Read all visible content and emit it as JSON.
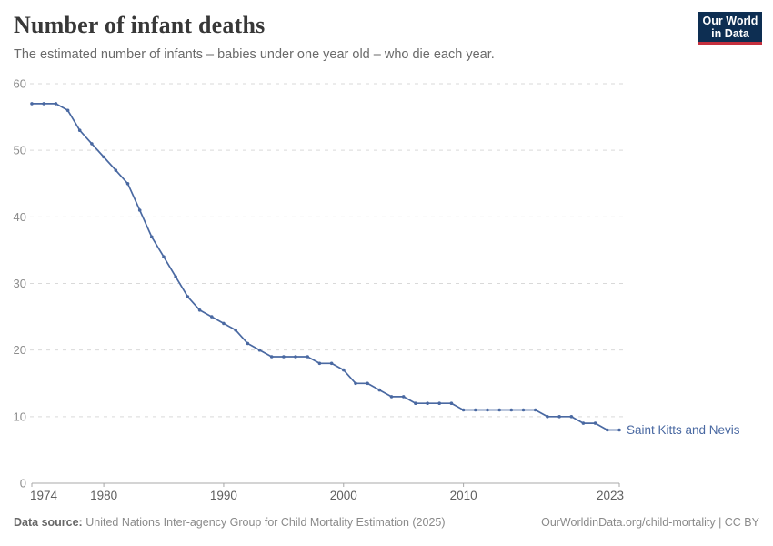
{
  "header": {
    "title": "Number of infant deaths",
    "subtitle": "The estimated number of infants – babies under one year old – who die each year.",
    "logo": {
      "line1": "Our World",
      "line2": "in Data",
      "bg_color": "#0d2e52",
      "accent_color": "#c5303e",
      "text_color": "#ffffff"
    }
  },
  "chart_data": {
    "type": "line",
    "title": "Number of infant deaths",
    "subtitle": "The estimated number of infants – babies under one year old – who die each year.",
    "grid": "horizontal-dashed",
    "legend_position": "end-of-line-label",
    "xlabel": "",
    "ylabel": "",
    "xlim": [
      1974,
      2023
    ],
    "ylim": [
      0,
      60
    ],
    "x_ticks": [
      1974,
      1980,
      1990,
      2000,
      2010,
      2023
    ],
    "y_ticks": [
      0,
      10,
      20,
      30,
      40,
      50,
      60
    ],
    "series": [
      {
        "name": "Saint Kitts and Nevis",
        "color": "#4a69a2",
        "x": [
          1974,
          1975,
          1976,
          1977,
          1978,
          1979,
          1980,
          1981,
          1982,
          1983,
          1984,
          1985,
          1986,
          1987,
          1988,
          1989,
          1990,
          1991,
          1992,
          1993,
          1994,
          1995,
          1996,
          1997,
          1998,
          1999,
          2000,
          2001,
          2002,
          2003,
          2004,
          2005,
          2006,
          2007,
          2008,
          2009,
          2010,
          2011,
          2012,
          2013,
          2014,
          2015,
          2016,
          2017,
          2018,
          2019,
          2020,
          2021,
          2022,
          2023
        ],
        "values": [
          57,
          57,
          57,
          56,
          53,
          51,
          49,
          47,
          45,
          41,
          37,
          34,
          31,
          28,
          26,
          25,
          24,
          23,
          21,
          20,
          19,
          19,
          19,
          19,
          18,
          18,
          17,
          15,
          15,
          14,
          13,
          13,
          12,
          12,
          12,
          12,
          11,
          11,
          11,
          11,
          11,
          11,
          11,
          10,
          10,
          10,
          9,
          9,
          8,
          8
        ]
      }
    ]
  },
  "footer": {
    "source_label": "Data source:",
    "source_text": "United Nations Inter-agency Group for Child Mortality Estimation (2025)",
    "link_text": "OurWorldinData.org/child-mortality | CC BY"
  }
}
